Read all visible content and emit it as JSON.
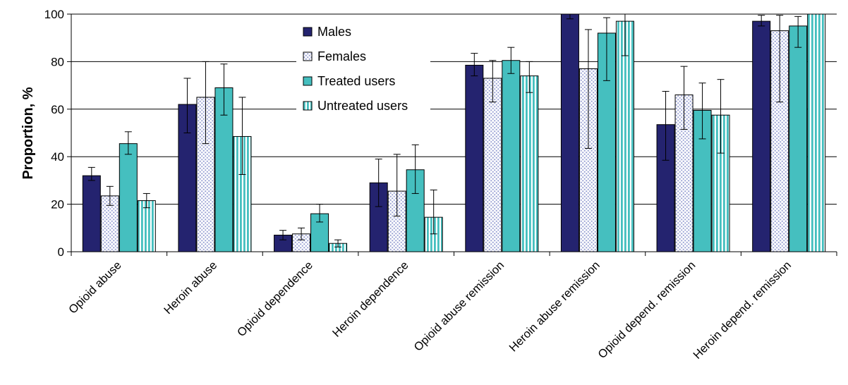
{
  "chart_data": {
    "type": "bar",
    "ylabel": "Proportion, %",
    "xlabel": "",
    "ylim": [
      0,
      100
    ],
    "yticks": [
      0,
      20,
      40,
      60,
      80,
      100
    ],
    "grid": true,
    "legend_position": "top-center",
    "categories": [
      "Opioid abuse",
      "Heroin abuse",
      "Opioid dependence",
      "Heroin dependence",
      "Opioid abuse remission",
      "Heroin abuse remission",
      "Opioid depend. remission",
      "Heroin depend. remission"
    ],
    "series": [
      {
        "name": "Males",
        "color": "#24236f",
        "pattern": "solid",
        "values": [
          32,
          62,
          7,
          29,
          78.5,
          100,
          53.5,
          97
        ],
        "err_low": [
          30,
          50,
          5,
          19,
          74,
          98,
          38.5,
          95
        ],
        "err_high": [
          35.5,
          73,
          9,
          39,
          83.5,
          100,
          67.5,
          99.5
        ]
      },
      {
        "name": "Females",
        "color": "#9aa2d4",
        "pattern": "dots",
        "values": [
          23.5,
          65,
          7.5,
          25.5,
          73,
          77,
          66,
          93
        ],
        "err_low": [
          19.5,
          45.5,
          5,
          15,
          63,
          43.5,
          51.5,
          63
        ],
        "err_high": [
          27.5,
          80,
          10,
          41,
          80.5,
          93.5,
          78,
          99.5
        ]
      },
      {
        "name": "Treated users",
        "color": "#45bfbf",
        "pattern": "solid",
        "values": [
          45.5,
          69,
          16,
          34.5,
          80.5,
          92,
          59.5,
          95
        ],
        "err_low": [
          41,
          57.5,
          12.5,
          24.5,
          75,
          72,
          47.5,
          86
        ],
        "err_high": [
          50.5,
          79,
          20,
          45,
          86,
          98.5,
          71,
          99
        ]
      },
      {
        "name": "Untreated users",
        "color": "#45bfbf",
        "pattern": "vstripes",
        "values": [
          21.5,
          48.5,
          3.5,
          14.5,
          74,
          97,
          57.5,
          100
        ],
        "err_low": [
          18.5,
          32.5,
          2,
          7.5,
          67,
          82.5,
          41.5,
          100
        ],
        "err_high": [
          24.5,
          65,
          5,
          26,
          80,
          100,
          72.5,
          100
        ]
      }
    ]
  }
}
